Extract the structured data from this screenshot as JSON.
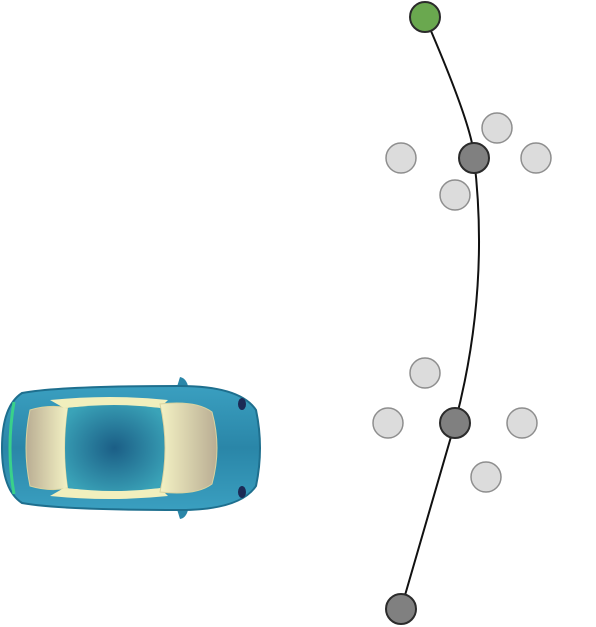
{
  "scene": {
    "colors": {
      "start_node": "#6aa84f",
      "waypoint_node": "#808080",
      "candidate_node": "#dcdcdc",
      "path": "#111111",
      "car_body": "#2a86a8",
      "car_glass": "#f1efbd"
    },
    "icons": {
      "vehicle": "car-topdown-icon"
    }
  }
}
